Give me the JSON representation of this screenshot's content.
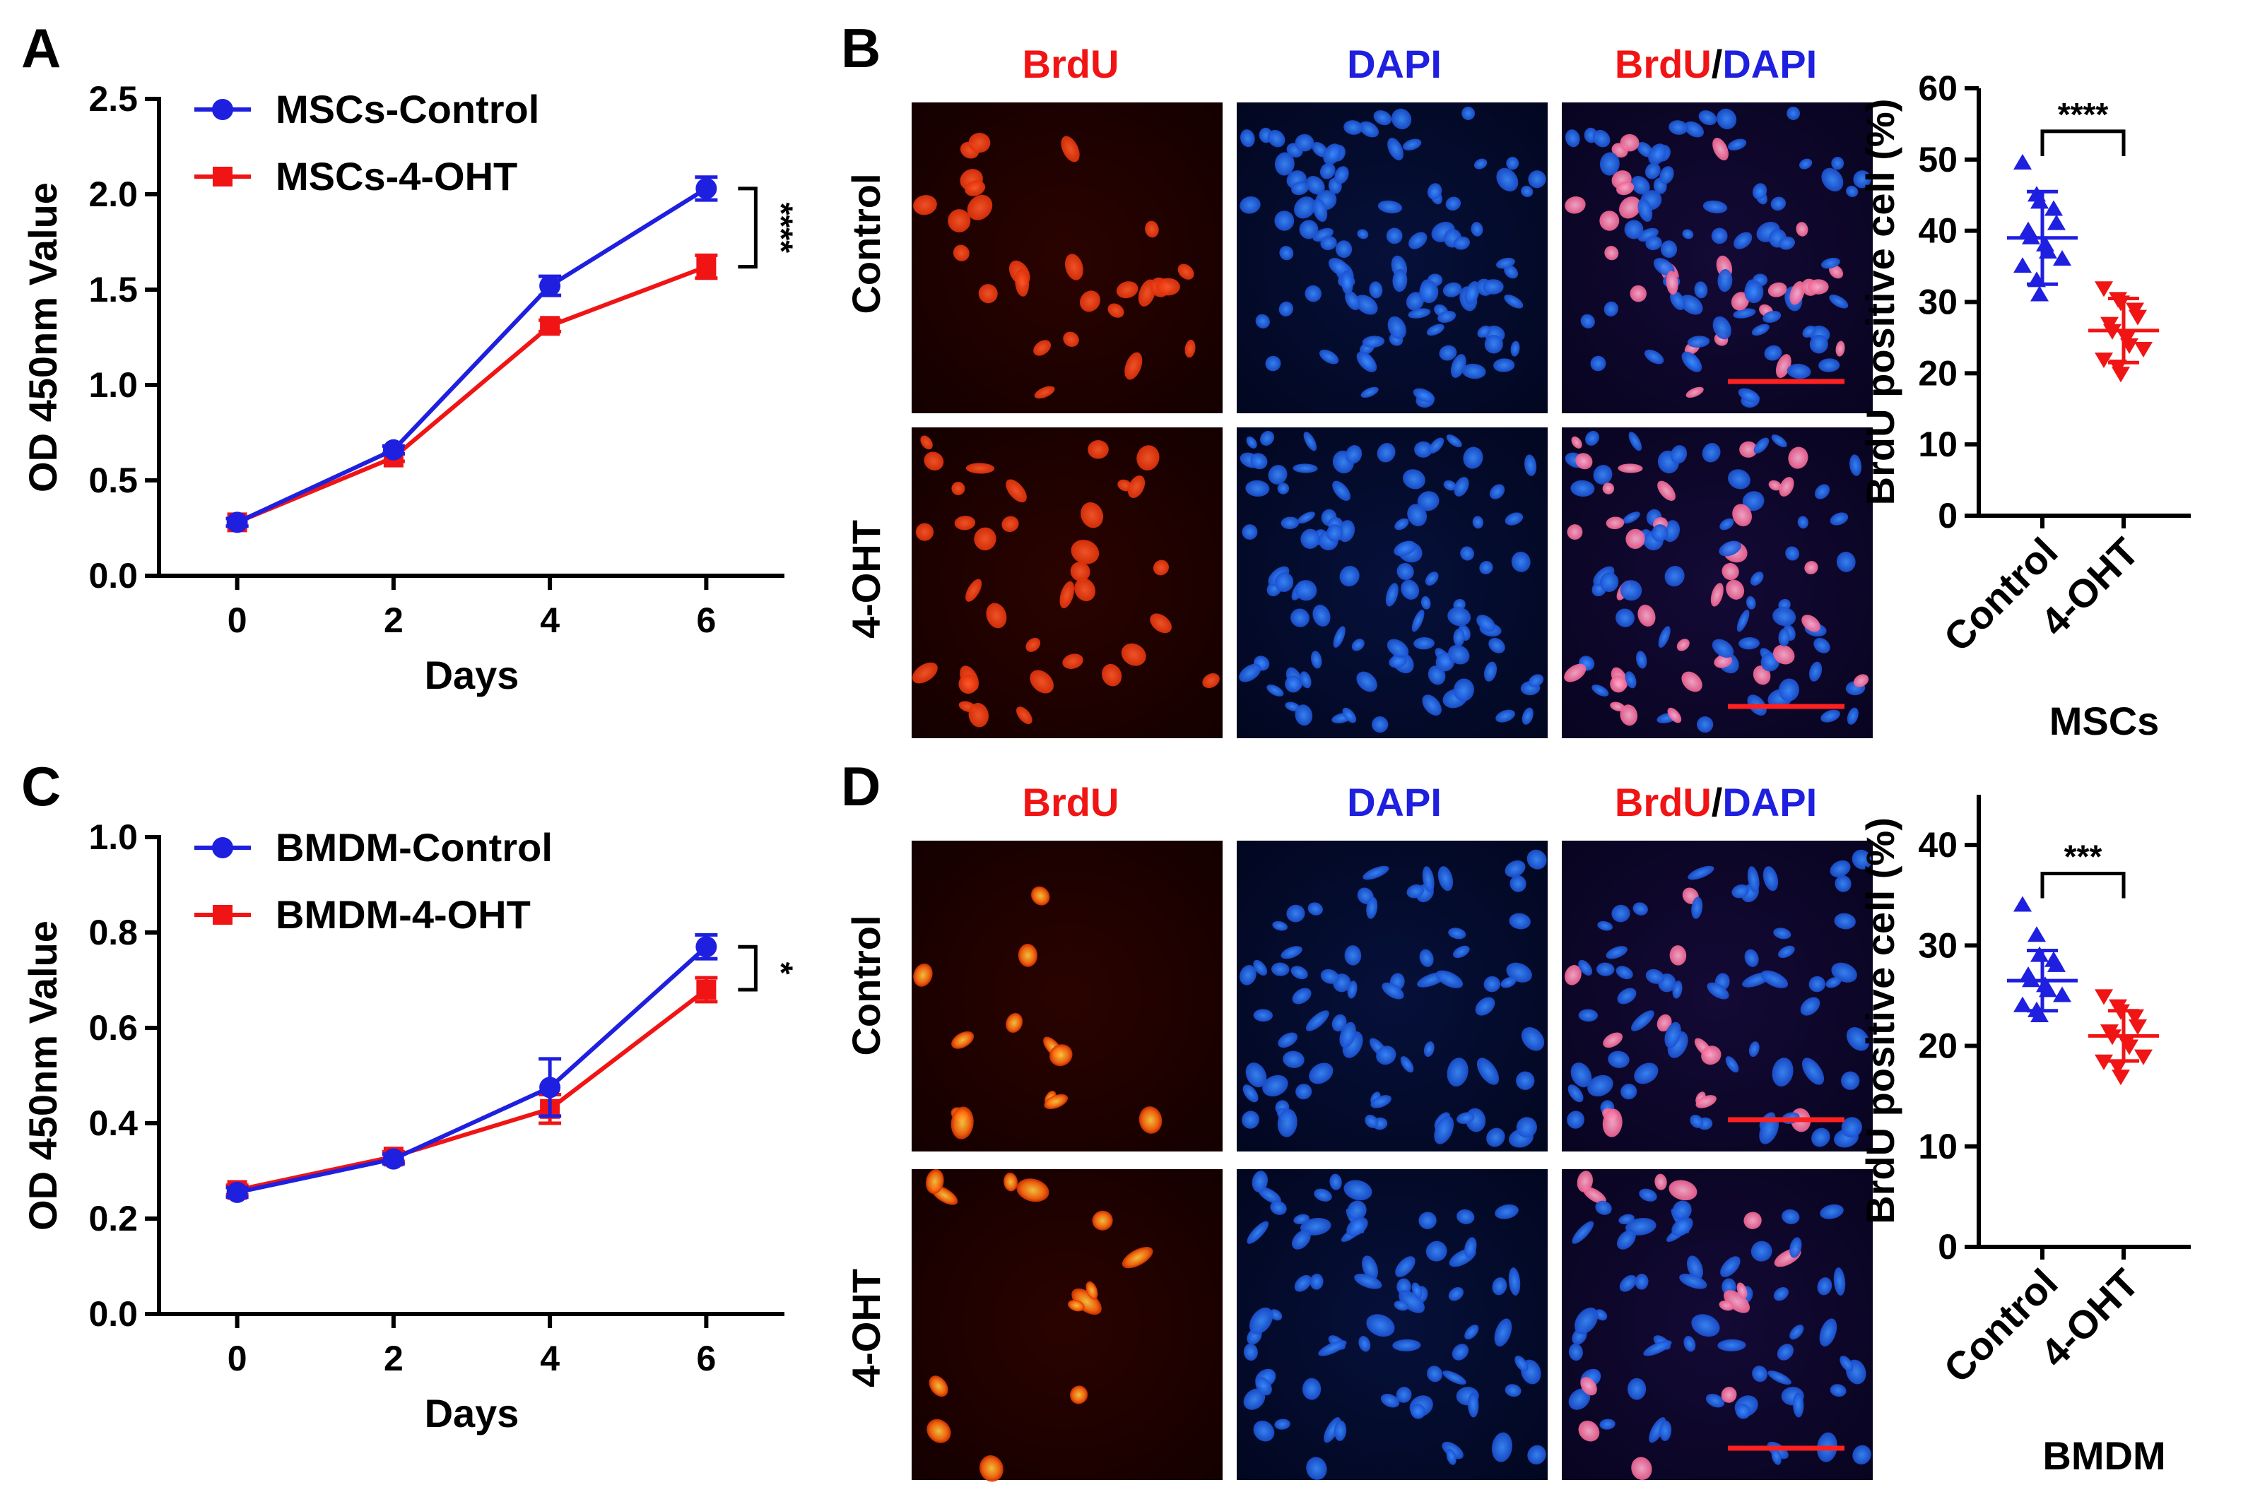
{
  "panels": {
    "a": "A",
    "b": "B",
    "c": "C",
    "d": "D"
  },
  "colors": {
    "blue": "#1f1fe0",
    "red": "#f01414",
    "scale": "#ff2020"
  },
  "chart_data": [
    {
      "id": "A",
      "type": "line",
      "x": [
        0,
        2,
        4,
        6
      ],
      "series": [
        {
          "name": "MSCs-Control",
          "color": "#1f1fe0",
          "marker": "circle",
          "values": [
            0.28,
            0.66,
            1.52,
            2.03
          ],
          "err": [
            0.02,
            0.02,
            0.05,
            0.06
          ]
        },
        {
          "name": "MSCs-4-OHT",
          "color": "#f01414",
          "marker": "square",
          "values": [
            0.28,
            0.62,
            1.31,
            1.62
          ],
          "err": [
            0.02,
            0.02,
            0.03,
            0.06
          ]
        }
      ],
      "xlabel": "Days",
      "ylabel": "OD 450nm Value",
      "xticks": [
        "0",
        "2",
        "4",
        "6"
      ],
      "yticks": [
        "0.0",
        "0.5",
        "1.0",
        "1.5",
        "2.0",
        "2.5"
      ],
      "ylim": [
        0,
        2.5
      ],
      "xlim": [
        -1,
        7
      ],
      "significance": "****"
    },
    {
      "id": "C",
      "type": "line",
      "x": [
        0,
        2,
        4,
        6
      ],
      "series": [
        {
          "name": "BMDM-Control",
          "color": "#1f1fe0",
          "marker": "circle",
          "values": [
            0.255,
            0.325,
            0.475,
            0.77
          ],
          "err": [
            0.01,
            0.01,
            0.06,
            0.025
          ]
        },
        {
          "name": "BMDM-4-OHT",
          "color": "#f01414",
          "marker": "square",
          "values": [
            0.26,
            0.33,
            0.43,
            0.68
          ],
          "err": [
            0.01,
            0.01,
            0.03,
            0.025
          ]
        }
      ],
      "xlabel": "Days",
      "ylabel": "OD 450nm Value",
      "xticks": [
        "0",
        "2",
        "4",
        "6"
      ],
      "yticks": [
        "0.0",
        "0.2",
        "0.4",
        "0.6",
        "0.8",
        "1.0"
      ],
      "ylim": [
        0,
        1.0
      ],
      "xlim": [
        -1,
        7
      ],
      "significance": "*"
    },
    {
      "id": "B-right",
      "type": "scatter",
      "categories": [
        "Control",
        "4-OHT"
      ],
      "series": [
        {
          "name": "Control",
          "color": "#1f1fe0",
          "marker": "triangle",
          "mean": 39,
          "sd": 6.5,
          "values": [
            49.5,
            45,
            44,
            43,
            41,
            40,
            39,
            38,
            37,
            36,
            35,
            33,
            31
          ]
        },
        {
          "name": "4-OHT",
          "color": "#f01414",
          "marker": "triangle-down",
          "mean": 26,
          "sd": 4.5,
          "values": [
            32,
            30.5,
            30,
            29,
            28,
            27,
            26,
            25,
            24,
            23.5,
            22,
            21,
            20
          ]
        }
      ],
      "ylabel": "BrdU positive cell (%)",
      "yticks": [
        "0",
        "10",
        "20",
        "30",
        "40",
        "50",
        "60"
      ],
      "ylim": [
        0,
        60
      ],
      "group_label": "MSCs",
      "significance": "****"
    },
    {
      "id": "D-right",
      "type": "scatter",
      "categories": [
        "Control",
        "4-OHT"
      ],
      "series": [
        {
          "name": "Control",
          "color": "#1f1fe0",
          "marker": "triangle",
          "mean": 26.5,
          "sd": 3,
          "values": [
            34,
            31,
            29,
            28.5,
            28,
            27,
            26.5,
            26,
            25.5,
            25,
            24,
            23.5,
            23
          ]
        },
        {
          "name": "4-OHT",
          "color": "#f01414",
          "marker": "triangle-down",
          "mean": 21,
          "sd": 2.5,
          "values": [
            25,
            24,
            23.5,
            23,
            22,
            21.5,
            21,
            20.5,
            20,
            19,
            18.5,
            18,
            17
          ]
        }
      ],
      "ylabel": "BrdU positive cell (%)",
      "yticks": [
        "0",
        "10",
        "20",
        "30",
        "40"
      ],
      "ylim": [
        0,
        45
      ],
      "group_label": "BMDM",
      "significance": "***"
    }
  ],
  "micrographs": {
    "col_brdu": "BrdU",
    "col_dapi": "DAPI",
    "col_merge_red": "BrdU",
    "col_merge_sep": "/",
    "col_merge_blue": "DAPI",
    "row_control": "Control",
    "row_4oht": "4-OHT"
  }
}
